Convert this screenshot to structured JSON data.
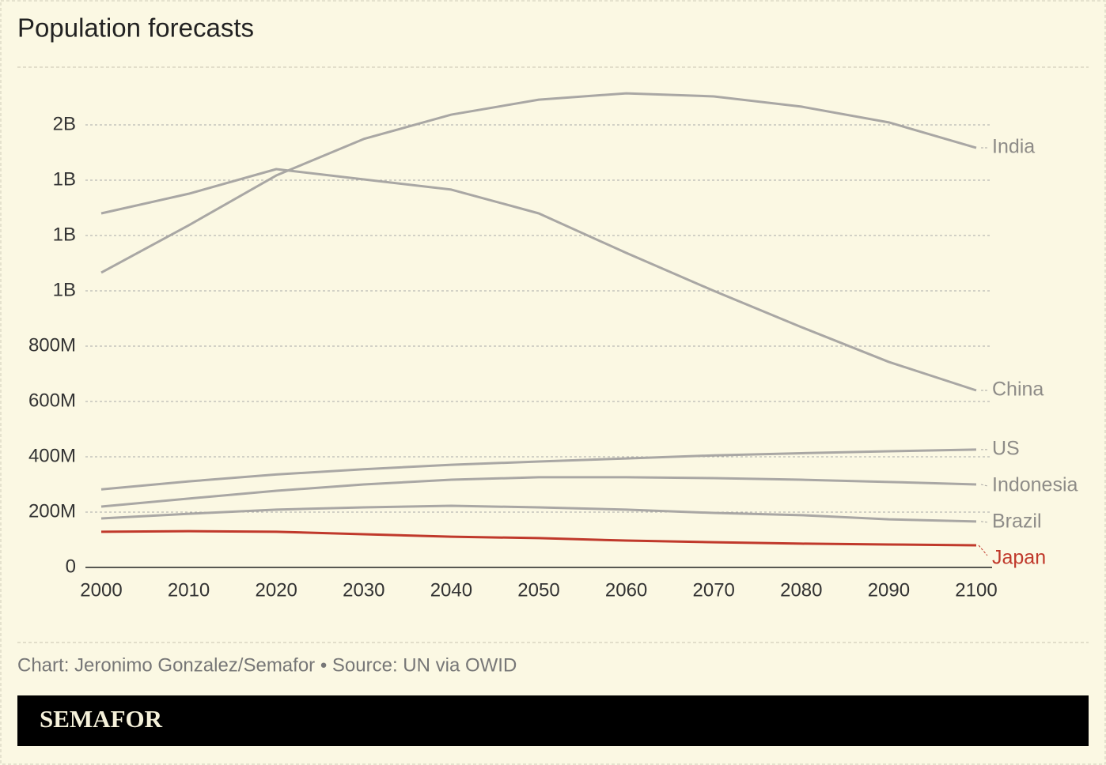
{
  "chart_data": {
    "type": "line",
    "title": "Population forecasts",
    "x": [
      2000,
      2010,
      2020,
      2030,
      2040,
      2050,
      2060,
      2070,
      2080,
      2090,
      2100
    ],
    "xlim": [
      2000,
      2100
    ],
    "xticks": [
      2000,
      2010,
      2020,
      2030,
      2040,
      2050,
      2060,
      2070,
      2080,
      2090,
      2100
    ],
    "ylim": [
      0,
      1800
    ],
    "yticks": [
      0,
      {
        "value": 200,
        "label": "200M"
      },
      {
        "value": 400,
        "label": "400M"
      },
      {
        "value": 600,
        "label": "600M"
      },
      {
        "value": 800,
        "label": "800M"
      },
      {
        "value": 1000,
        "label": "1B"
      },
      {
        "value": 1200,
        "label": "1B"
      },
      {
        "value": 1400,
        "label": "1B"
      },
      {
        "value": 1600,
        "label": "2B"
      }
    ],
    "grid": true,
    "series": [
      {
        "name": "India",
        "color": "#a9a7a4",
        "values": [
          1066,
          1237,
          1417,
          1549,
          1637,
          1691,
          1714,
          1703,
          1666,
          1609,
          1517
        ]
      },
      {
        "name": "China",
        "color": "#a9a7a4",
        "values": [
          1280,
          1351,
          1440,
          1403,
          1366,
          1280,
          1137,
          1000,
          869,
          743,
          640
        ]
      },
      {
        "name": "US",
        "color": "#a9a7a4",
        "values": [
          282,
          311,
          336,
          355,
          371,
          383,
          394,
          405,
          413,
          420,
          426
        ]
      },
      {
        "name": "Indonesia",
        "color": "#a9a7a4",
        "values": [
          220,
          249,
          277,
          300,
          317,
          326,
          326,
          323,
          317,
          309,
          300
        ]
      },
      {
        "name": "Brazil",
        "color": "#a9a7a4",
        "values": [
          177,
          194,
          209,
          217,
          223,
          217,
          209,
          197,
          189,
          174,
          166
        ]
      },
      {
        "name": "Japan",
        "color": "#c0392b",
        "values": [
          129,
          131,
          129,
          120,
          111,
          106,
          97,
          91,
          86,
          83,
          80
        ]
      }
    ],
    "source": "Chart: Jeronimo Gonzalez/Semafor • Source: UN via OWID"
  },
  "footer": {
    "brand": "SEMAFOR"
  }
}
